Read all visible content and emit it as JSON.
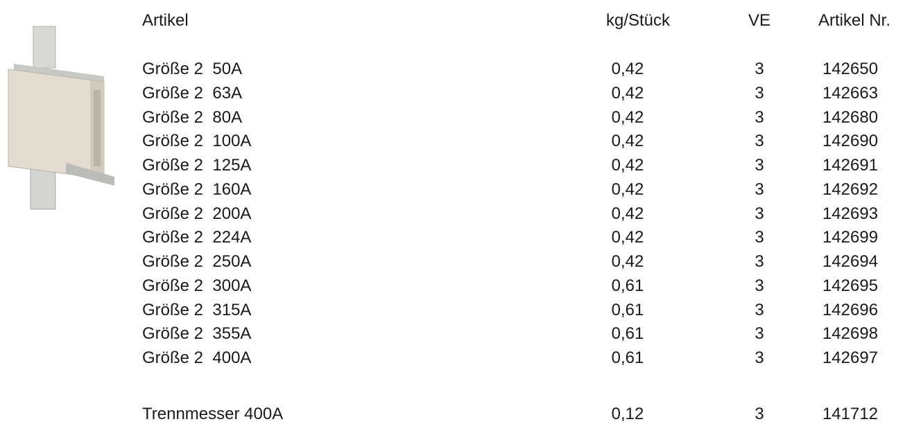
{
  "header": [
    "Artikel",
    "kg/Stück",
    "VE",
    "Artikel Nr."
  ],
  "rows": [
    [
      "Größe 2  50A",
      "0,42",
      "3",
      "142650"
    ],
    [
      "Größe 2  63A",
      "0,42",
      "3",
      "142663"
    ],
    [
      "Größe 2  80A",
      "0,42",
      "3",
      "142680"
    ],
    [
      "Größe 2  100A",
      "0,42",
      "3",
      "142690"
    ],
    [
      "Größe 2  125A",
      "0,42",
      "3",
      "142691"
    ],
    [
      "Größe 2  160A",
      "0,42",
      "3",
      "142692"
    ],
    [
      "Größe 2  200A",
      "0,42",
      "3",
      "142693"
    ],
    [
      "Größe 2  224A",
      "0,42",
      "3",
      "142699"
    ],
    [
      "Größe 2  250A",
      "0,42",
      "3",
      "142694"
    ],
    [
      "Größe 2  300A",
      "0,61",
      "3",
      "142695"
    ],
    [
      "Größe 2  315A",
      "0,61",
      "3",
      "142696"
    ],
    [
      "Größe 2  355A",
      "0,61",
      "3",
      "142698"
    ],
    [
      "Größe 2  400A",
      "0,61",
      "3",
      "142697"
    ]
  ],
  "extra_row": [
    "Trennmesser 400A",
    "0,12",
    "3",
    "141712"
  ]
}
